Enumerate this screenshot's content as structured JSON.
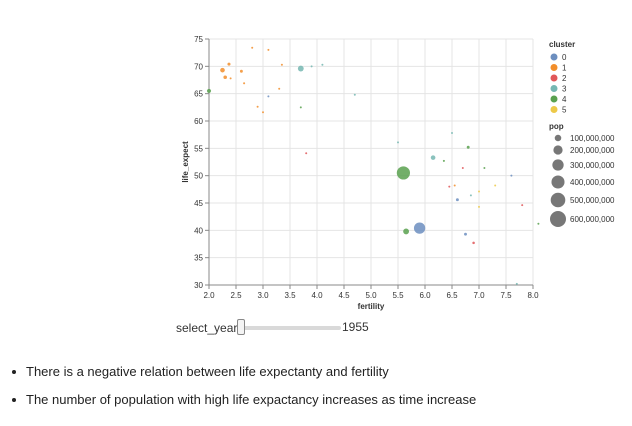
{
  "chart_data": {
    "type": "scatter",
    "x_field": "fertility",
    "y_field": "life_expect",
    "xlabel": "fertility",
    "ylabel": "life_expect",
    "xlim": [
      2.0,
      8.0
    ],
    "ylim": [
      30,
      75
    ],
    "x_ticks": [
      "2.0",
      "2.5",
      "3.0",
      "3.5",
      "4.0",
      "4.5",
      "5.0",
      "5.5",
      "6.0",
      "6.5",
      "7.0",
      "7.5",
      "8.0"
    ],
    "y_ticks": [
      "30",
      "35",
      "40",
      "45",
      "50",
      "55",
      "60",
      "65",
      "70",
      "75"
    ],
    "x_tick_values": [
      2.0,
      2.5,
      3.0,
      3.5,
      4.0,
      4.5,
      5.0,
      5.5,
      6.0,
      6.5,
      7.0,
      7.5,
      8.0
    ],
    "y_tick_values": [
      30,
      35,
      40,
      45,
      50,
      55,
      60,
      65,
      70,
      75
    ],
    "grid": true,
    "color_legend": {
      "title": "cluster",
      "entries": [
        {
          "label": "0",
          "color": "#6c8ebf"
        },
        {
          "label": "1",
          "color": "#f28e2b"
        },
        {
          "label": "2",
          "color": "#e15759"
        },
        {
          "label": "3",
          "color": "#76b7b2"
        },
        {
          "label": "4",
          "color": "#59a14f"
        },
        {
          "label": "5",
          "color": "#edc948"
        }
      ]
    },
    "size_legend": {
      "title": "pop",
      "entries": [
        {
          "label": "100,000,000",
          "value": 100000000
        },
        {
          "label": "200,000,000",
          "value": 200000000
        },
        {
          "label": "300,000,000",
          "value": 300000000
        },
        {
          "label": "400,000,000",
          "value": 400000000
        },
        {
          "label": "500,000,000",
          "value": 500000000
        },
        {
          "label": "600,000,000",
          "value": 600000000
        }
      ]
    },
    "points": [
      {
        "fertility": 2.25,
        "life_expect": 69.3,
        "pop": 50000000,
        "cluster": "1"
      },
      {
        "fertility": 2.37,
        "life_expect": 70.4,
        "pop": 22000000,
        "cluster": "1"
      },
      {
        "fertility": 2.3,
        "life_expect": 68.0,
        "pop": 30000000,
        "cluster": "1"
      },
      {
        "fertility": 2.6,
        "life_expect": 69.1,
        "pop": 20000000,
        "cluster": "1"
      },
      {
        "fertility": 2.65,
        "life_expect": 66.9,
        "pop": 10000000,
        "cluster": "1"
      },
      {
        "fertility": 2.4,
        "life_expect": 67.8,
        "pop": 3000000,
        "cluster": "1"
      },
      {
        "fertility": 2.8,
        "life_expect": 73.4,
        "pop": 2000000,
        "cluster": "1"
      },
      {
        "fertility": 3.1,
        "life_expect": 73.0,
        "pop": 3000000,
        "cluster": "1"
      },
      {
        "fertility": 3.3,
        "life_expect": 65.9,
        "pop": 5000000,
        "cluster": "1"
      },
      {
        "fertility": 3.0,
        "life_expect": 61.6,
        "pop": 3000000,
        "cluster": "1"
      },
      {
        "fertility": 2.9,
        "life_expect": 62.6,
        "pop": 1000000,
        "cluster": "1"
      },
      {
        "fertility": 3.35,
        "life_expect": 70.3,
        "pop": 2000000,
        "cluster": "1"
      },
      {
        "fertility": 1.95,
        "life_expect": 65.5,
        "pop": 40000000,
        "cluster": "4"
      },
      {
        "fertility": 3.1,
        "life_expect": 64.5,
        "pop": 4000000,
        "cluster": "0"
      },
      {
        "fertility": 3.7,
        "life_expect": 69.6,
        "pop": 80000000,
        "cluster": "3"
      },
      {
        "fertility": 3.9,
        "life_expect": 70.0,
        "pop": 5000000,
        "cluster": "3"
      },
      {
        "fertility": 3.7,
        "life_expect": 62.5,
        "pop": 1000000,
        "cluster": "4"
      },
      {
        "fertility": 3.8,
        "life_expect": 54.1,
        "pop": 1000000,
        "cluster": "2"
      },
      {
        "fertility": 4.7,
        "life_expect": 64.8,
        "pop": 1000000,
        "cluster": "3"
      },
      {
        "fertility": 4.1,
        "life_expect": 70.3,
        "pop": 1000000,
        "cluster": "3"
      },
      {
        "fertility": 5.6,
        "life_expect": 50.5,
        "pop": 410000000,
        "cluster": "4"
      },
      {
        "fertility": 5.9,
        "life_expect": 40.4,
        "pop": 300000000,
        "cluster": "0"
      },
      {
        "fertility": 5.65,
        "life_expect": 39.8,
        "pop": 80000000,
        "cluster": "4"
      },
      {
        "fertility": 6.15,
        "life_expect": 53.3,
        "pop": 50000000,
        "cluster": "3"
      },
      {
        "fertility": 6.35,
        "life_expect": 52.7,
        "pop": 10000000,
        "cluster": "4"
      },
      {
        "fertility": 6.8,
        "life_expect": 55.2,
        "pop": 20000000,
        "cluster": "4"
      },
      {
        "fertility": 6.6,
        "life_expect": 45.6,
        "pop": 20000000,
        "cluster": "0"
      },
      {
        "fertility": 6.55,
        "life_expect": 48.2,
        "pop": 10000000,
        "cluster": "1"
      },
      {
        "fertility": 6.45,
        "life_expect": 48.0,
        "pop": 3000000,
        "cluster": "2"
      },
      {
        "fertility": 6.75,
        "life_expect": 39.3,
        "pop": 20000000,
        "cluster": "0"
      },
      {
        "fertility": 6.9,
        "life_expect": 37.7,
        "pop": 15000000,
        "cluster": "2"
      },
      {
        "fertility": 7.1,
        "life_expect": 51.4,
        "pop": 8000000,
        "cluster": "4"
      },
      {
        "fertility": 7.0,
        "life_expect": 47.1,
        "pop": 3000000,
        "cluster": "5"
      },
      {
        "fertility": 7.0,
        "life_expect": 44.3,
        "pop": 2000000,
        "cluster": "5"
      },
      {
        "fertility": 6.7,
        "life_expect": 51.4,
        "pop": 2000000,
        "cluster": "2"
      },
      {
        "fertility": 7.3,
        "life_expect": 48.2,
        "pop": 1000000,
        "cluster": "5"
      },
      {
        "fertility": 7.6,
        "life_expect": 50.0,
        "pop": 1000000,
        "cluster": "0"
      },
      {
        "fertility": 7.8,
        "life_expect": 44.6,
        "pop": 2000000,
        "cluster": "2"
      },
      {
        "fertility": 7.7,
        "life_expect": 30.2,
        "pop": 1000000,
        "cluster": "3"
      },
      {
        "fertility": 8.1,
        "life_expect": 41.2,
        "pop": 1000000,
        "cluster": "4"
      },
      {
        "fertility": 6.85,
        "life_expect": 46.4,
        "pop": 1000000,
        "cluster": "3"
      },
      {
        "fertility": 6.5,
        "life_expect": 57.8,
        "pop": 1000000,
        "cluster": "3"
      },
      {
        "fertility": 5.5,
        "life_expect": 56.1,
        "pop": 1000000,
        "cluster": "3"
      }
    ]
  },
  "controls": {
    "slider_label": "select_year",
    "slider_value": "1955",
    "slider_min": 1955,
    "slider_max": 2005,
    "slider_current": 1955
  },
  "notes": [
    "There is a negative relation between life expectanty and fertility",
    "The number of population with high life expactancy increases as time increase"
  ]
}
